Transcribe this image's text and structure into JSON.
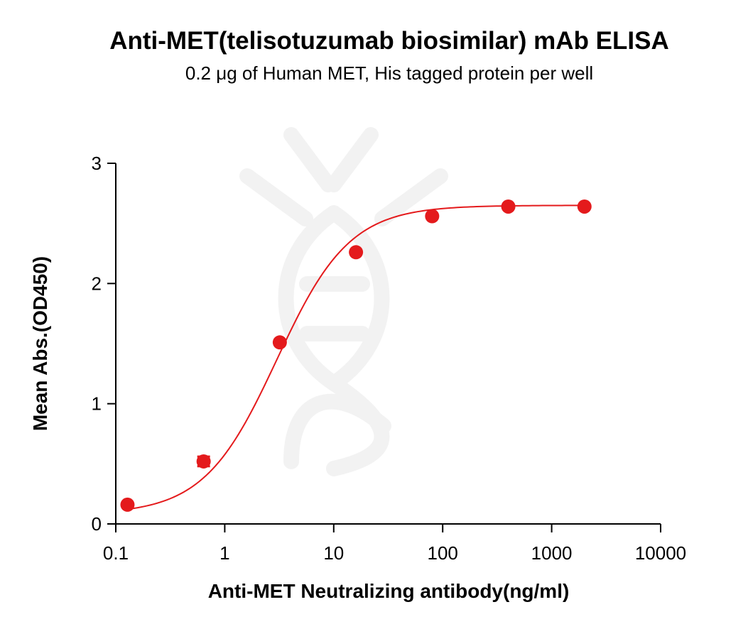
{
  "title": "Anti-MET(telisotuzumab biosimilar) mAb ELISA",
  "subtitle": "0.2 μg of Human MET, His tagged protein per well",
  "chart_data": {
    "type": "scatter",
    "title": "Anti-MET(telisotuzumab biosimilar) mAb ELISA",
    "subtitle": "0.2 μg of Human MET, His tagged protein per well",
    "xlabel": "Anti-MET Neutralizing antibody(ng/ml)",
    "ylabel": "Mean Abs.(OD450)",
    "xscale": "log",
    "xlim": [
      0.1,
      10000
    ],
    "ylim": [
      0,
      3
    ],
    "xticks": [
      0.1,
      1,
      10,
      100,
      1000,
      10000
    ],
    "xtick_labels": [
      "0.1",
      "1",
      "10",
      "100",
      "1000",
      "10000"
    ],
    "yticks": [
      0,
      1,
      2,
      3
    ],
    "ytick_labels": [
      "0",
      "1",
      "2",
      "3"
    ],
    "grid": false,
    "legend": "none",
    "series": [
      {
        "points": [
          {
            "x": 0.128,
            "y": 0.16
          },
          {
            "x": 0.64,
            "y": 0.52,
            "err": 0.04
          },
          {
            "x": 3.2,
            "y": 1.51
          },
          {
            "x": 16,
            "y": 2.26
          },
          {
            "x": 80,
            "y": 2.56
          },
          {
            "x": 400,
            "y": 2.64
          },
          {
            "x": 2000,
            "y": 2.64
          }
        ],
        "fit_curve": "four-parameter logistic",
        "color": "#e41a1c"
      }
    ]
  }
}
